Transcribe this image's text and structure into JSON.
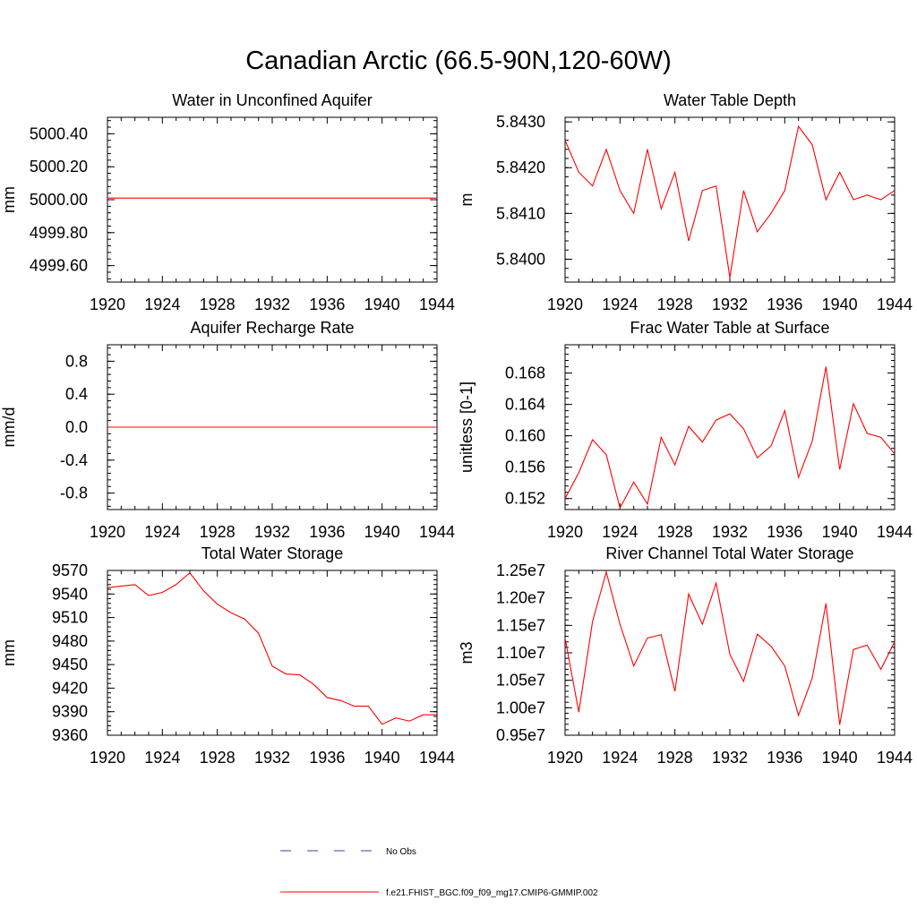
{
  "title": "Canadian Arctic (66.5-90N,120-60W)",
  "chart_data": [
    {
      "type": "line",
      "title": "Water in Unconfined Aquifer",
      "ylabel": "mm",
      "xlabel": "",
      "xlim": [
        1920,
        1944
      ],
      "ylim": [
        4999.5,
        5000.5
      ],
      "yticks": [
        4999.6,
        4999.8,
        5000.0,
        5000.2,
        5000.4
      ],
      "ytick_labels": [
        "4999.60",
        "4999.80",
        "5000.00",
        "5000.20",
        "5000.40"
      ],
      "ytick_minor_step": 0.04,
      "xticks": [
        1920,
        1924,
        1928,
        1932,
        1936,
        1940,
        1944
      ],
      "xtick_labels": [
        "1920",
        "1924",
        "1928",
        "1932",
        "1936",
        "1940",
        "1944"
      ],
      "x": [
        1920,
        1921,
        1922,
        1923,
        1924,
        1925,
        1926,
        1927,
        1928,
        1929,
        1930,
        1931,
        1932,
        1933,
        1934,
        1935,
        1936,
        1937,
        1938,
        1939,
        1940,
        1941,
        1942,
        1943,
        1944
      ],
      "series": [
        {
          "name": "f.e21.FHIST_BGC.f09_f09_mg17.CMIP6-GMMIP.002",
          "color": "#ff0000",
          "values": [
            5000.01,
            5000.01,
            5000.01,
            5000.01,
            5000.01,
            5000.01,
            5000.01,
            5000.01,
            5000.01,
            5000.01,
            5000.01,
            5000.01,
            5000.01,
            5000.01,
            5000.01,
            5000.01,
            5000.01,
            5000.01,
            5000.01,
            5000.01,
            5000.01,
            5000.01,
            5000.01,
            5000.01,
            5000.01
          ]
        }
      ]
    },
    {
      "type": "line",
      "title": "Water Table Depth",
      "ylabel": "m",
      "xlabel": "",
      "xlim": [
        1920,
        1944
      ],
      "ylim": [
        5.8395,
        5.8431
      ],
      "yticks": [
        5.84,
        5.841,
        5.842,
        5.843
      ],
      "ytick_labels": [
        "5.8400",
        "5.8410",
        "5.8420",
        "5.8430"
      ],
      "ytick_minor_step": 0.0002,
      "xticks": [
        1920,
        1924,
        1928,
        1932,
        1936,
        1940,
        1944
      ],
      "xtick_labels": [
        "1920",
        "1924",
        "1928",
        "1932",
        "1936",
        "1940",
        "1944"
      ],
      "x": [
        1920,
        1921,
        1922,
        1923,
        1924,
        1925,
        1926,
        1927,
        1928,
        1929,
        1930,
        1931,
        1932,
        1933,
        1934,
        1935,
        1936,
        1937,
        1938,
        1939,
        1940,
        1941,
        1942,
        1943,
        1944
      ],
      "series": [
        {
          "name": "f.e21.FHIST_BGC.f09_f09_mg17.CMIP6-GMMIP.002",
          "color": "#ff0000",
          "values": [
            5.8426,
            5.8419,
            5.8416,
            5.8424,
            5.8415,
            5.841,
            5.8424,
            5.8411,
            5.8419,
            5.8404,
            5.8415,
            5.8416,
            5.8396,
            5.8415,
            5.8406,
            5.841,
            5.8415,
            5.8429,
            5.8425,
            5.8413,
            5.8419,
            5.8413,
            5.8414,
            5.8413,
            5.8415
          ]
        }
      ]
    },
    {
      "type": "line",
      "title": "Aquifer Recharge Rate",
      "ylabel": "mm/d",
      "xlabel": "",
      "xlim": [
        1920,
        1944
      ],
      "ylim": [
        -1.0,
        1.0
      ],
      "yticks": [
        -0.8,
        -0.4,
        0.0,
        0.4,
        0.8
      ],
      "ytick_labels": [
        "-0.8",
        "-0.4",
        "0.0",
        "0.4",
        "0.8"
      ],
      "ytick_minor_step": 0.08,
      "xticks": [
        1920,
        1924,
        1928,
        1932,
        1936,
        1940,
        1944
      ],
      "xtick_labels": [
        "1920",
        "1924",
        "1928",
        "1932",
        "1936",
        "1940",
        "1944"
      ],
      "x": [
        1920,
        1921,
        1922,
        1923,
        1924,
        1925,
        1926,
        1927,
        1928,
        1929,
        1930,
        1931,
        1932,
        1933,
        1934,
        1935,
        1936,
        1937,
        1938,
        1939,
        1940,
        1941,
        1942,
        1943,
        1944
      ],
      "series": [
        {
          "name": "f.e21.FHIST_BGC.f09_f09_mg17.CMIP6-GMMIP.002",
          "color": "#ff0000",
          "values": [
            0.0,
            0.0,
            0.0,
            0.0,
            0.0,
            0.0,
            0.0,
            0.0,
            0.0,
            0.0,
            0.0,
            0.0,
            0.0,
            0.0,
            0.0,
            0.0,
            0.0,
            0.0,
            0.0,
            0.0,
            0.0,
            0.0,
            0.0,
            0.0,
            0.0
          ]
        }
      ]
    },
    {
      "type": "line",
      "title": "Frac Water Table at Surface",
      "ylabel": "unitless [0-1]",
      "xlabel": "",
      "xlim": [
        1920,
        1944
      ],
      "ylim": [
        0.1506,
        0.1716
      ],
      "yticks": [
        0.152,
        0.156,
        0.16,
        0.164,
        0.168
      ],
      "ytick_labels": [
        "0.152",
        "0.156",
        "0.160",
        "0.164",
        "0.168"
      ],
      "ytick_minor_step": 0.0008,
      "xticks": [
        1920,
        1924,
        1928,
        1932,
        1936,
        1940,
        1944
      ],
      "xtick_labels": [
        "1920",
        "1924",
        "1928",
        "1932",
        "1936",
        "1940",
        "1944"
      ],
      "x": [
        1920,
        1921,
        1922,
        1923,
        1924,
        1925,
        1926,
        1927,
        1928,
        1929,
        1930,
        1931,
        1932,
        1933,
        1934,
        1935,
        1936,
        1937,
        1938,
        1939,
        1940,
        1941,
        1942,
        1943,
        1944
      ],
      "series": [
        {
          "name": "f.e21.FHIST_BGC.f09_f09_mg17.CMIP6-GMMIP.002",
          "color": "#ff0000",
          "values": [
            0.152,
            0.1553,
            0.1595,
            0.1576,
            0.1508,
            0.1541,
            0.1513,
            0.1598,
            0.1563,
            0.1612,
            0.1592,
            0.162,
            0.1628,
            0.1609,
            0.1572,
            0.1587,
            0.1632,
            0.1547,
            0.1593,
            0.1688,
            0.1557,
            0.1641,
            0.1603,
            0.1598,
            0.1577
          ]
        }
      ]
    },
    {
      "type": "line",
      "title": "Total Water Storage",
      "ylabel": "mm",
      "xlabel": "",
      "xlim": [
        1920,
        1944
      ],
      "ylim": [
        9360,
        9570
      ],
      "yticks": [
        9360,
        9390,
        9420,
        9450,
        9480,
        9510,
        9540,
        9570
      ],
      "ytick_labels": [
        "9360",
        "9390",
        "9420",
        "9450",
        "9480",
        "9510",
        "9540",
        "9570"
      ],
      "ytick_minor_step": 6,
      "xticks": [
        1920,
        1924,
        1928,
        1932,
        1936,
        1940,
        1944
      ],
      "xtick_labels": [
        "1920",
        "1924",
        "1928",
        "1932",
        "1936",
        "1940",
        "1944"
      ],
      "x": [
        1920,
        1921,
        1922,
        1923,
        1924,
        1925,
        1926,
        1927,
        1928,
        1929,
        1930,
        1931,
        1932,
        1933,
        1934,
        1935,
        1936,
        1937,
        1938,
        1939,
        1940,
        1941,
        1942,
        1943,
        1944
      ],
      "series": [
        {
          "name": "f.e21.FHIST_BGC.f09_f09_mg17.CMIP6-GMMIP.002",
          "color": "#ff0000",
          "values": [
            9548,
            9550,
            9552,
            9538,
            9542,
            9552,
            9567,
            9544,
            9527,
            9516,
            9508,
            9490,
            9448,
            9438,
            9437,
            9425,
            9408,
            9404,
            9397,
            9397,
            9374,
            9382,
            9378,
            9386,
            9386
          ]
        }
      ]
    },
    {
      "type": "line",
      "title": "River Channel Total Water Storage",
      "ylabel": "m3",
      "xlabel": "",
      "xlim": [
        1920,
        1944
      ],
      "ylim": [
        9500000,
        12500000
      ],
      "yticks": [
        9500000,
        10000000,
        10500000,
        11000000,
        11500000,
        12000000,
        12500000
      ],
      "ytick_labels": [
        "0.95e7",
        "1.00e7",
        "1.05e7",
        "1.10e7",
        "1.15e7",
        "1.20e7",
        "1.25e7"
      ],
      "ytick_minor_step": 100000,
      "xticks": [
        1920,
        1924,
        1928,
        1932,
        1936,
        1940,
        1944
      ],
      "xtick_labels": [
        "1920",
        "1924",
        "1928",
        "1932",
        "1936",
        "1940",
        "1944"
      ],
      "x": [
        1920,
        1921,
        1922,
        1923,
        1924,
        1925,
        1926,
        1927,
        1928,
        1929,
        1930,
        1931,
        1932,
        1933,
        1934,
        1935,
        1936,
        1937,
        1938,
        1939,
        1940,
        1941,
        1942,
        1943,
        1944
      ],
      "series": [
        {
          "name": "f.e21.FHIST_BGC.f09_f09_mg17.CMIP6-GMMIP.002",
          "color": "#ff0000",
          "values": [
            11270000,
            9920000,
            11570000,
            12470000,
            11520000,
            10760000,
            11270000,
            11330000,
            10300000,
            12070000,
            11520000,
            12270000,
            10970000,
            10480000,
            11340000,
            11120000,
            10760000,
            9860000,
            10540000,
            11900000,
            9690000,
            11060000,
            11140000,
            10700000,
            11200000
          ]
        }
      ]
    }
  ],
  "legend": {
    "position": "bottom-center",
    "items": [
      {
        "label": "No Obs",
        "color": "#3c3ca0",
        "style": "dashed"
      },
      {
        "label": "f.e21.FHIST_BGC.f09_f09_mg17.CMIP6-GMMIP.002",
        "color": "#ff0000",
        "style": "solid"
      }
    ]
  }
}
